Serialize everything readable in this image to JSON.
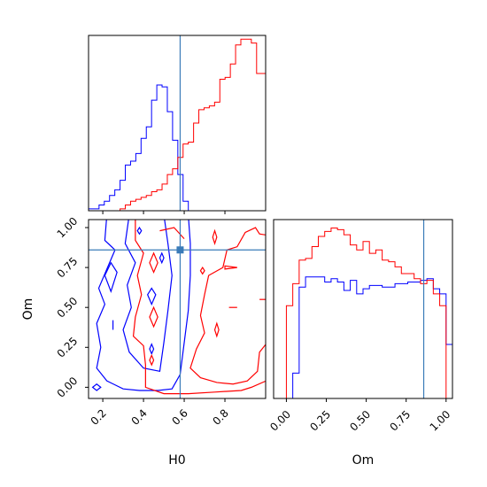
{
  "chart_data": {
    "type": "corner",
    "parameters": [
      "H0",
      "Om"
    ],
    "truths": {
      "H0": 0.58,
      "Om": 0.86
    },
    "truth_color": "#3a7bb8",
    "series": [
      {
        "color": "#0000ff"
      },
      {
        "color": "#ff0000"
      }
    ],
    "panels": [
      {
        "id": "hist_H0",
        "type": "histogram",
        "xlim": [
          0.13,
          1.0
        ],
        "bins": [
          0.13,
          0.1558,
          0.1816,
          0.2074,
          0.2332,
          0.259,
          0.2848,
          0.3106,
          0.3364,
          0.3622,
          0.388,
          0.4138,
          0.4396,
          0.4654,
          0.4912,
          0.517,
          0.5428,
          0.5686,
          0.5944,
          0.6202,
          0.646,
          0.6718,
          0.6976,
          0.7234,
          0.7492,
          0.775,
          0.8008,
          0.8266,
          0.8524,
          0.8782,
          0.904,
          0.9298,
          0.9556,
          0.9814,
          1.0
        ],
        "counts": [
          [
            1,
            1,
            3,
            5,
            8,
            11,
            16,
            24,
            26,
            30,
            38,
            44,
            58,
            66,
            65,
            52,
            37,
            19,
            5,
            0,
            0,
            0,
            0,
            0,
            0,
            0,
            0,
            0,
            0,
            0,
            0,
            0,
            0,
            0
          ],
          [
            0,
            0,
            0,
            0,
            0,
            0,
            1,
            3,
            5,
            6,
            7,
            8,
            10,
            11,
            14,
            19,
            22,
            28,
            35,
            36,
            46,
            53,
            54,
            55,
            57,
            69,
            70,
            77,
            87,
            90,
            90,
            88,
            72,
            72
          ]
        ]
      },
      {
        "id": "hist_Om",
        "type": "histogram",
        "xlim": [
          -0.08,
          1.04
        ],
        "bins": [
          -0.08,
          -0.04,
          0.0,
          0.04,
          0.08,
          0.12,
          0.16,
          0.2,
          0.24,
          0.28,
          0.32,
          0.36,
          0.4,
          0.44,
          0.48,
          0.52,
          0.56,
          0.6,
          0.64,
          0.68,
          0.72,
          0.76,
          0.8,
          0.84,
          0.88,
          0.92,
          0.96,
          1.0,
          1.04
        ],
        "counts": [
          [
            0,
            0,
            0,
            15,
            66,
            72,
            72,
            72,
            69,
            71,
            69,
            64,
            70,
            62,
            65,
            67,
            67,
            66,
            66,
            68,
            68,
            69,
            69,
            70,
            71,
            65,
            62,
            32
          ],
          [
            0,
            0,
            55,
            68,
            82,
            83,
            90,
            96,
            99,
            101,
            100,
            97,
            91,
            88,
            93,
            86,
            88,
            82,
            81,
            78,
            74,
            74,
            71,
            68,
            70,
            62,
            55,
            0
          ]
        ]
      },
      {
        "id": "contour_H0_Om",
        "type": "contour",
        "xlim": [
          0.13,
          1.0
        ],
        "ylim": [
          -0.07,
          1.05
        ]
      }
    ],
    "axes": {
      "H0": {
        "label": "H0",
        "ticks": [
          0.2,
          0.4,
          0.6,
          0.8
        ],
        "tick_labels": [
          "0.2",
          "0.4",
          "0.6",
          "0.8"
        ]
      },
      "Om": {
        "label": "Om",
        "ticks": [
          0.0,
          0.25,
          0.5,
          0.75,
          1.0
        ],
        "tick_labels": [
          "0.00",
          "0.25",
          "0.50",
          "0.75",
          "1.00"
        ]
      }
    }
  }
}
